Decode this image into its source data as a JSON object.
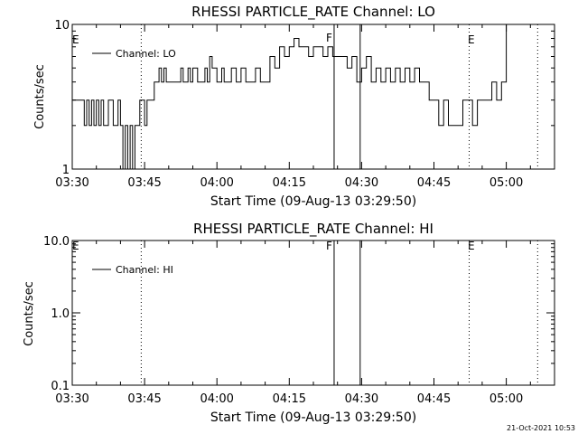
{
  "chart_data": [
    {
      "type": "line",
      "title": "RHESSI PARTICLE_RATE Channel: LO",
      "xlabel": "Start Time (09-Aug-13 03:29:50)",
      "ylabel": "Counts/sec",
      "yscale": "log",
      "ylim": [
        1,
        10
      ],
      "yticks": [
        {
          "value": 1,
          "label": "1"
        },
        {
          "value": 10,
          "label": "10"
        }
      ],
      "xlim_minutes": [
        0,
        100
      ],
      "xticks": [
        {
          "minutes": 0,
          "label": "03:30"
        },
        {
          "minutes": 15,
          "label": "03:45"
        },
        {
          "minutes": 30,
          "label": "04:00"
        },
        {
          "minutes": 45,
          "label": "04:15"
        },
        {
          "minutes": 60,
          "label": "04:30"
        },
        {
          "minutes": 75,
          "label": "04:45"
        },
        {
          "minutes": 90,
          "label": "05:00"
        }
      ],
      "legend": {
        "position": "top-left",
        "entries": [
          "Channel: LO"
        ]
      },
      "grid": false,
      "series": [
        {
          "name": "Channel: LO",
          "color": "#000000",
          "x_minutes": [
            0,
            2,
            2.5,
            3,
            3.5,
            4,
            4.5,
            5,
            5.5,
            6,
            6.5,
            7,
            7.5,
            8,
            8.5,
            9,
            9.5,
            10,
            10.5,
            11,
            11.5,
            12,
            12.5,
            13,
            13.5,
            14,
            14.5,
            15,
            15.5,
            16,
            17,
            17.5,
            18,
            18.5,
            19,
            19.5,
            20,
            22,
            22.5,
            23,
            23.5,
            24,
            24.5,
            25,
            25.5,
            26,
            27,
            27.5,
            28,
            28.5,
            29,
            30,
            31,
            31.5,
            32,
            33,
            34,
            35,
            36,
            37,
            38,
            39,
            40,
            41,
            42,
            43,
            44,
            45,
            46,
            47,
            48,
            49,
            50,
            51,
            52,
            53,
            54,
            55,
            56,
            57,
            58,
            59,
            60,
            61,
            62,
            63,
            64,
            65,
            66,
            67,
            68,
            69,
            70,
            71,
            72,
            73,
            74,
            75,
            76,
            77,
            78,
            79,
            80,
            81,
            82,
            83,
            84,
            85,
            86,
            87,
            88,
            89,
            90
          ],
          "y_counts": [
            3,
            3,
            2,
            3,
            2,
            3,
            2,
            3,
            2,
            3,
            2,
            2,
            3,
            3,
            2,
            2,
            3,
            2,
            1,
            2,
            1,
            2,
            1,
            2,
            2,
            3,
            3,
            2,
            3,
            3,
            4,
            4,
            5,
            4,
            5,
            4,
            4,
            4,
            5,
            4,
            4,
            5,
            4,
            5,
            5,
            4,
            4,
            5,
            4,
            6,
            5,
            4,
            5,
            4,
            4,
            5,
            4,
            5,
            4,
            4,
            5,
            4,
            4,
            6,
            5,
            7,
            6,
            7,
            8,
            7,
            7,
            6,
            7,
            7,
            6,
            7,
            6,
            6,
            6,
            5,
            6,
            4,
            5,
            6,
            4,
            5,
            4,
            5,
            4,
            5,
            4,
            5,
            4,
            5,
            4,
            4,
            3,
            3,
            2,
            3,
            2,
            2,
            2,
            3,
            3,
            2,
            3,
            3,
            3,
            4,
            3,
            4,
            10
          ]
        }
      ],
      "annotations": [
        {
          "label": "E",
          "minutes": 0,
          "style": "dotted"
        },
        {
          "label": "",
          "minutes": 14.3,
          "style": "dotted"
        },
        {
          "label": "F",
          "minutes": 54.3,
          "style": "solid"
        },
        {
          "label": "",
          "minutes": 59.7,
          "style": "solid"
        },
        {
          "label": "E",
          "minutes": 82.3,
          "style": "dotted"
        },
        {
          "label": "",
          "minutes": 96.5,
          "style": "dotted"
        }
      ]
    },
    {
      "type": "line",
      "title": "RHESSI PARTICLE_RATE Channel: HI",
      "xlabel": "Start Time (09-Aug-13 03:29:50)",
      "ylabel": "Counts/sec",
      "yscale": "log",
      "ylim": [
        0.1,
        10
      ],
      "yticks": [
        {
          "value": 0.1,
          "label": "0.1"
        },
        {
          "value": 1,
          "label": "1.0"
        },
        {
          "value": 10,
          "label": "10.0"
        }
      ],
      "xlim_minutes": [
        0,
        100
      ],
      "xticks": [
        {
          "minutes": 0,
          "label": "03:30"
        },
        {
          "minutes": 15,
          "label": "03:45"
        },
        {
          "minutes": 30,
          "label": "04:00"
        },
        {
          "minutes": 45,
          "label": "04:15"
        },
        {
          "minutes": 60,
          "label": "04:30"
        },
        {
          "minutes": 75,
          "label": "04:45"
        },
        {
          "minutes": 90,
          "label": "05:00"
        }
      ],
      "legend": {
        "position": "top-left",
        "entries": [
          "Channel: HI"
        ]
      },
      "grid": false,
      "series": [
        {
          "name": "Channel: HI",
          "color": "#000000",
          "x_minutes": [],
          "y_counts": []
        }
      ],
      "annotations": [
        {
          "label": "E",
          "minutes": 0,
          "style": "dotted"
        },
        {
          "label": "",
          "minutes": 14.3,
          "style": "dotted"
        },
        {
          "label": "F",
          "minutes": 54.3,
          "style": "solid"
        },
        {
          "label": "",
          "minutes": 59.7,
          "style": "solid"
        },
        {
          "label": "E",
          "minutes": 82.3,
          "style": "dotted"
        },
        {
          "label": "",
          "minutes": 96.5,
          "style": "dotted"
        }
      ]
    }
  ],
  "footer": {
    "timestamp": "21-Oct-2021 10:53"
  }
}
